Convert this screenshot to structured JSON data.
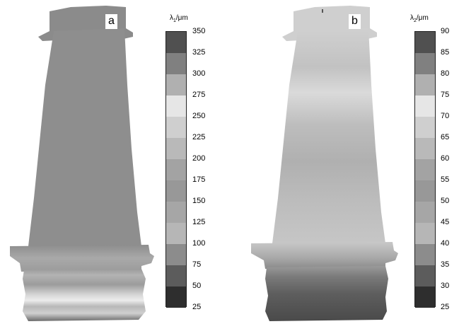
{
  "panels": [
    {
      "letter": "a",
      "colorbar": {
        "symbol": "λ",
        "subscript": "1",
        "unit": "/μm",
        "ticks": [
          "350",
          "325",
          "300",
          "275",
          "250",
          "225",
          "200",
          "175",
          "150",
          "125",
          "100",
          "75",
          "50",
          "25"
        ],
        "colors": [
          "#505050",
          "#808080",
          "#b0b0b0",
          "#e6e6e6",
          "#cfcfcf",
          "#b9b9b9",
          "#a3a3a3",
          "#989898",
          "#a6a6a6",
          "#b6b6b6",
          "#8c8c8c",
          "#5c5c5c",
          "#2e2e2e",
          "#1c1c1c"
        ]
      }
    },
    {
      "letter": "b",
      "colorbar": {
        "symbol": "λ",
        "subscript": "2",
        "unit": "/μm",
        "ticks": [
          "90",
          "85",
          "80",
          "75",
          "70",
          "65",
          "60",
          "55",
          "50",
          "45",
          "40",
          "35",
          "30",
          "25"
        ],
        "colors": [
          "#505050",
          "#808080",
          "#b0b0b0",
          "#e6e6e6",
          "#cfcfcf",
          "#b9b9b9",
          "#a3a3a3",
          "#989898",
          "#a6a6a6",
          "#b6b6b6",
          "#8c8c8c",
          "#5c5c5c",
          "#2e2e2e",
          "#1c1c1c"
        ]
      }
    }
  ]
}
